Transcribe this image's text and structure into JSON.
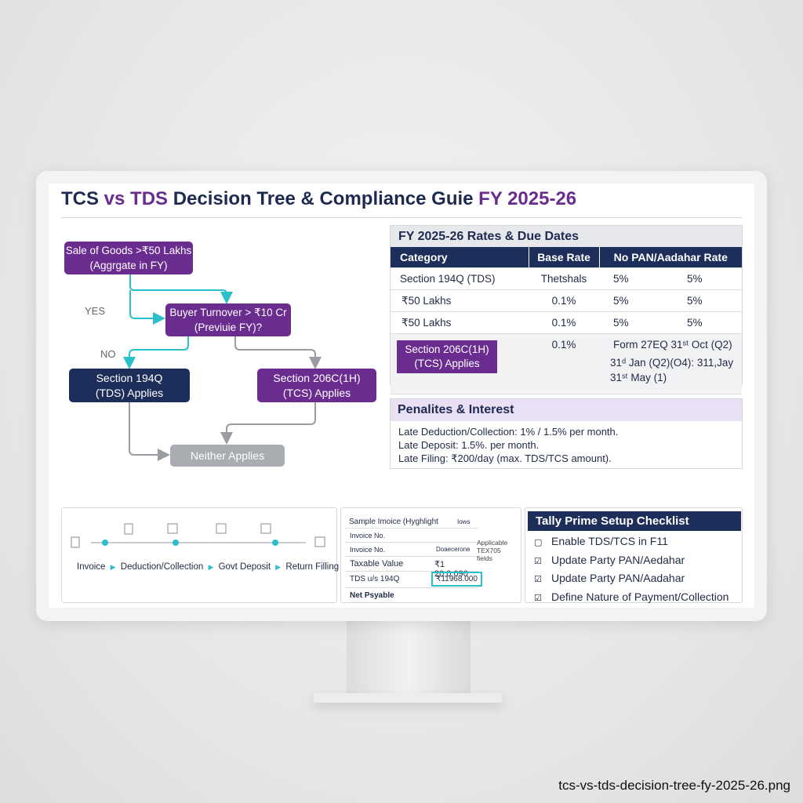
{
  "title_parts": [
    "TCS",
    "vs",
    "TDS",
    "Decision Tree & Compliance Guie",
    "FY 2025-26"
  ],
  "decision_tree": {
    "nodes": [
      {
        "lines": [
          "Sale of Goods >₹50 Lakhs",
          "(Aggrgate in FY)"
        ]
      },
      {
        "lines": [
          "Buyer Turnover > ₹10 Cr",
          "(Previuie FY)?"
        ]
      },
      {
        "lines": [
          "Section 194Q",
          "(TDS) Applies"
        ]
      },
      {
        "lines": [
          "Section 206C(1H)",
          "(TCS) Applies"
        ]
      },
      {
        "lines": [
          "Neither Applies"
        ]
      }
    ],
    "edge_labels": [
      "YES",
      "NO"
    ]
  },
  "rates": {
    "title": "FY 2025-26 Rates & Due Dates",
    "headers": [
      "Category",
      "Base Rate",
      "No PAN/Aadahar Rate"
    ],
    "rows": [
      [
        "Section 194Q (TDS)",
        "Thetshals",
        "5%",
        "5%"
      ],
      [
        "₹50 Lakhs",
        "0.1%",
        "5%",
        "5%"
      ],
      [
        "₹50 Lakhs",
        "0.1%",
        "5%",
        "5%"
      ],
      [
        "Section 206C(1H) (TCS) Applies",
        "0.1%",
        "Form 27EQ 31ˢᵗ Oct (Q2)",
        "31ᵈ Jan (Q2)(O4): 311,Jay 31ˢᵗ May (1)"
      ]
    ]
  },
  "penalties": {
    "title": "Penalites & Interest",
    "lines": [
      "Late Deduction/Collection: 1% / 1.5% per month.",
      "Late Deposit: 1.5%. per month.",
      "Late Filing: ₹200/day (max. TDS/TCS amount)."
    ]
  },
  "timeline": {
    "steps": [
      "Invoice",
      "Deduction/Collection",
      "Govt Deposit",
      "Return Filling"
    ]
  },
  "sample_invoice": {
    "title": "Sample Imoice (Hyghlight",
    "tag": "Iows",
    "annotation": "Applicable TEX705 fields",
    "rows": [
      {
        "label": "Invoice No."
      },
      {
        "label": "Invoice No.",
        "value": "Doaecerone"
      },
      {
        "label": "Taxable Value",
        "value": "₹1 20.0,090"
      },
      {
        "label": "TDS u/s 194Q",
        "value": "₹11968.000"
      },
      {
        "label": "Net Psyable"
      }
    ]
  },
  "checklist": {
    "title": "Tally Prime Setup Checklist",
    "items": [
      "Enable TDS/TCS in F11",
      "Update Party PAN/Aedahar",
      "Update Party PAN/Aadahar",
      "Define Nature of Payment/Collection"
    ]
  },
  "filename": "tcs-vs-tds-decision-tree-fy-2025-26.png"
}
